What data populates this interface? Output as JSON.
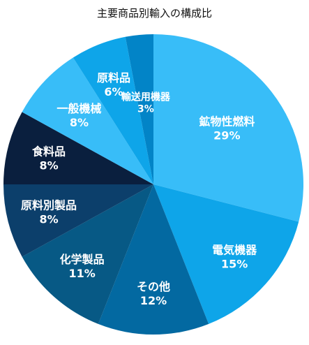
{
  "chart_data": {
    "type": "pie",
    "title": "主要商品別輸入の構成比",
    "slices": [
      {
        "label": "鉱物性燃料",
        "value": 29,
        "value_label": "29%",
        "color": "#38BDF8"
      },
      {
        "label": "電気機器",
        "value": 15,
        "value_label": "15%",
        "color": "#0EA5E9"
      },
      {
        "label": "その他",
        "value": 12,
        "value_label": "12%",
        "color": "#0369A1"
      },
      {
        "label": "化学製品",
        "value": 11,
        "value_label": "11%",
        "color": "#075985"
      },
      {
        "label": "原料別製品",
        "value": 8,
        "value_label": "8%",
        "color": "#0C3F6B"
      },
      {
        "label": "食料品",
        "value": 8,
        "value_label": "8%",
        "color": "#0A1F3E"
      },
      {
        "label": "一般機械",
        "value": 8,
        "value_label": "8%",
        "color": "#38BDF8"
      },
      {
        "label": "原料品",
        "value": 6,
        "value_label": "6%",
        "color": "#0EA5E9"
      },
      {
        "label": "輸送用機器",
        "value": 3,
        "value_label": "3%",
        "color": "#0284C7"
      }
    ],
    "start_angle_deg": 0,
    "direction": "clockwise",
    "legend": "none",
    "label_color": "#ffffff"
  }
}
